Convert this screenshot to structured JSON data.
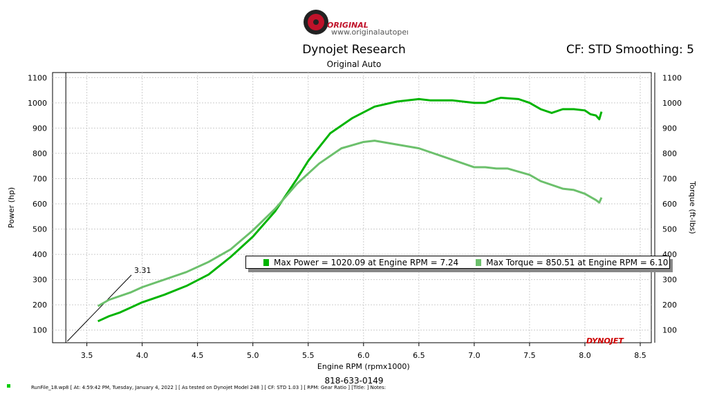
{
  "header": {
    "logo_text": "ORIGINAL",
    "logo_url_text": "www.originalautoperformance.com",
    "title": "Dynojet Research",
    "subtitle": "Original Auto",
    "cf_text": "CF: STD Smoothing: 5"
  },
  "footer": {
    "phone": "818-633-0149",
    "runinfo": "RunFile_18.wp8 [ At: 4:59:42 PM, Tuesday, January 4, 2022 ] [ As tested on Dynojet Model 248 ] [ CF: STD 1.03 ] [ RPM: Gear Ratio ] [Title: ]  Notes:"
  },
  "watermark": "DYNOJET",
  "chart_data": {
    "type": "line",
    "xlabel": "Engine RPM (rpmx1000)",
    "ylabel": "Power (hp)",
    "y2label": "Torque (ft-lbs)",
    "xlim": [
      3.19,
      8.6
    ],
    "ylim": [
      50,
      1120
    ],
    "y2lim": [
      50,
      1120
    ],
    "xticks": [
      3.5,
      4.0,
      4.5,
      5.0,
      5.5,
      6.0,
      6.5,
      7.0,
      7.5,
      8.0,
      8.5
    ],
    "yticks": [
      100,
      200,
      300,
      400,
      500,
      600,
      700,
      800,
      900,
      1000,
      1100
    ],
    "grid": true,
    "marker_line": {
      "x": 3.31,
      "label": "3.31"
    },
    "legend": [
      "Max Power = 1020.09 at Engine RPM = 7.24",
      "Max Torque = 850.51 at Engine RPM = 6.10"
    ],
    "series": [
      {
        "name": "Power",
        "color": "#00b400",
        "x": [
          3.6,
          3.7,
          3.8,
          3.9,
          4.0,
          4.2,
          4.4,
          4.6,
          4.8,
          5.0,
          5.2,
          5.4,
          5.5,
          5.7,
          5.9,
          6.1,
          6.3,
          6.5,
          6.6,
          6.8,
          7.0,
          7.1,
          7.2,
          7.24,
          7.4,
          7.5,
          7.6,
          7.7,
          7.8,
          7.9,
          8.0,
          8.05,
          8.1,
          8.13,
          8.15
        ],
        "y": [
          135,
          155,
          170,
          190,
          210,
          240,
          275,
          320,
          390,
          470,
          570,
          700,
          770,
          880,
          940,
          985,
          1005,
          1015,
          1010,
          1010,
          1000,
          1000,
          1015,
          1020,
          1015,
          1000,
          975,
          960,
          975,
          975,
          970,
          955,
          950,
          935,
          965
        ]
      },
      {
        "name": "Torque",
        "color": "#6cc06c",
        "x": [
          3.6,
          3.7,
          3.9,
          4.0,
          4.2,
          4.4,
          4.6,
          4.8,
          5.0,
          5.2,
          5.4,
          5.6,
          5.8,
          6.0,
          6.1,
          6.3,
          6.5,
          6.7,
          6.9,
          7.0,
          7.1,
          7.2,
          7.3,
          7.5,
          7.6,
          7.8,
          7.9,
          8.0,
          8.1,
          8.13,
          8.15
        ],
        "y": [
          195,
          220,
          250,
          270,
          300,
          330,
          370,
          420,
          495,
          580,
          680,
          760,
          820,
          845,
          850,
          835,
          820,
          790,
          760,
          745,
          745,
          740,
          740,
          715,
          690,
          660,
          655,
          640,
          615,
          605,
          625
        ]
      }
    ]
  }
}
